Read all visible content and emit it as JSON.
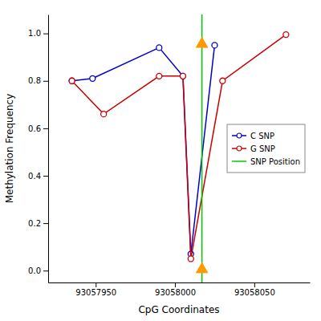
{
  "chart_data": {
    "type": "line",
    "xlabel": "CpG Coordinates",
    "ylabel": "Methylation Frequency",
    "series": [
      {
        "name": "C SNP",
        "type": "line",
        "color": "#0000cc",
        "marker": "circle",
        "line_style": "solid",
        "x": [
          93057935,
          93057948,
          93057990,
          93058005,
          93058010,
          93058025
        ],
        "values": [
          0.8,
          0.81,
          0.94,
          0.82,
          0.07,
          0.95
        ]
      },
      {
        "name": "G SNP",
        "type": "line",
        "color": "#cc0000",
        "marker": "circle",
        "line_style": "solid",
        "x": [
          93057935,
          93057955,
          93057990,
          93058005,
          93058010,
          93058030,
          93058070
        ],
        "values": [
          0.8,
          0.66,
          0.82,
          0.82,
          0.05,
          0.8,
          0.995
        ]
      },
      {
        "name": "SNP Position",
        "type": "vline",
        "color": "#00cc00",
        "line_style": "solid",
        "x": [
          93058017
        ]
      },
      {
        "type": "scatter",
        "color": "#ff9900",
        "marker": "triangle",
        "x": [
          93058017,
          93058017
        ],
        "values": [
          0.955,
          0.005
        ]
      }
    ],
    "xlim": [
      93057920,
      93058085
    ],
    "ylim": [
      -0.05,
      1.08
    ],
    "xticks": [
      93057950,
      93058000,
      93058050
    ],
    "yticks": [
      {
        "value": 0,
        "label": "0.0"
      },
      0.2,
      0.4,
      0.6,
      0.8,
      {
        "value": 1,
        "label": "1.0"
      }
    ],
    "grid": false,
    "legend": "right"
  }
}
